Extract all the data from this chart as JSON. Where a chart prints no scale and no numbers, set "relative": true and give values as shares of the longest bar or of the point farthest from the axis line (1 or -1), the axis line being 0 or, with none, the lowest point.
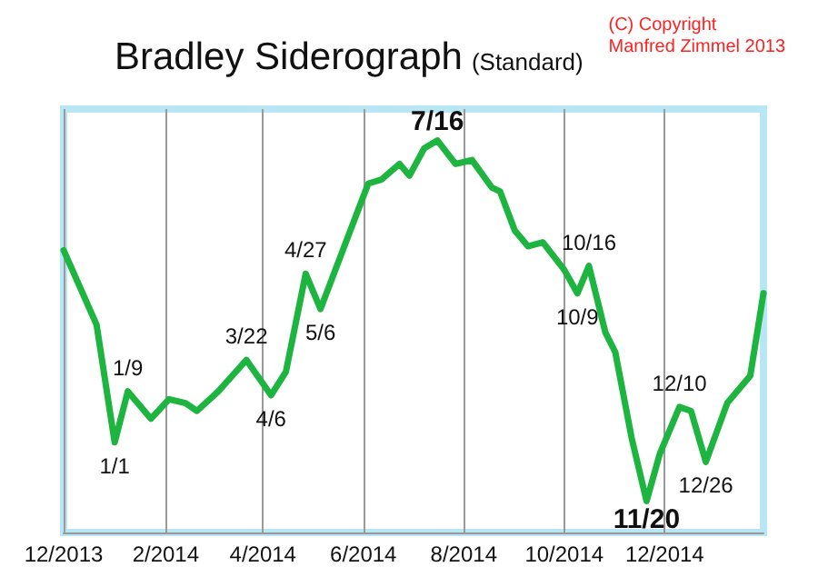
{
  "chart_data": {
    "type": "line",
    "title": "Bradley Siderograph",
    "subtitle": "(Standard)",
    "relative": true,
    "grid": "x",
    "marker": "none",
    "line_style": "solid",
    "xlim": [
      "2013-12-01",
      "2015-01-30"
    ],
    "xticks": [
      {
        "value": "2013-12-01",
        "label": "12/2013"
      },
      {
        "value": "2014-02-01",
        "label": "2/2014"
      },
      {
        "value": "2014-04-01",
        "label": "4/2014"
      },
      {
        "value": "2014-06-01",
        "label": "6/2014"
      },
      {
        "value": "2014-08-01",
        "label": "8/2014"
      },
      {
        "value": "2014-10-01",
        "label": "10/2014"
      },
      {
        "value": "2014-12-01",
        "label": "12/2014"
      }
    ],
    "x": [
      "2013-12-01",
      "2013-12-21",
      "2014-01-01",
      "2014-01-09",
      "2014-01-23",
      "2014-02-03",
      "2014-02-13",
      "2014-02-20",
      "2014-03-05",
      "2014-03-22",
      "2014-04-06",
      "2014-04-15",
      "2014-04-27",
      "2014-05-06",
      "2014-05-25",
      "2014-06-04",
      "2014-06-12",
      "2014-06-23",
      "2014-06-29",
      "2014-07-08",
      "2014-07-16",
      "2014-07-27",
      "2014-08-06",
      "2014-08-18",
      "2014-08-23",
      "2014-09-01",
      "2014-09-09",
      "2014-09-18",
      "2014-10-01",
      "2014-10-09",
      "2014-10-16",
      "2014-10-26",
      "2014-11-01",
      "2014-11-11",
      "2014-11-20",
      "2014-11-28",
      "2014-12-10",
      "2014-12-17",
      "2014-12-26",
      "2015-01-08",
      "2015-01-22",
      "2015-01-30"
    ],
    "series": [
      {
        "color": "#1db440",
        "values": [
          0.72,
          0.53,
          0.23,
          0.36,
          0.29,
          0.34,
          0.33,
          0.31,
          0.36,
          0.44,
          0.35,
          0.41,
          0.66,
          0.57,
          0.78,
          0.89,
          0.9,
          0.94,
          0.91,
          0.98,
          1,
          0.94,
          0.95,
          0.88,
          0.87,
          0.77,
          0.73,
          0.74,
          0.67,
          0.61,
          0.68,
          0.51,
          0.46,
          0.24,
          0.08,
          0.2,
          0.32,
          0.31,
          0.18,
          0.33,
          0.4,
          0.61
        ]
      }
    ],
    "annotations": [
      "(C) Copyright\nManfred Zimmel 2013",
      {
        "text": "1/1",
        "x": "2014-01-01",
        "y": 0.23
      },
      {
        "text": "1/9",
        "x": "2014-01-09",
        "y": 0.36
      },
      {
        "text": "3/22",
        "x": "2014-03-22",
        "y": 0.44
      },
      {
        "text": "4/6",
        "x": "2014-04-06",
        "y": 0.35
      },
      {
        "text": "4/27",
        "x": "2014-04-27",
        "y": 0.66
      },
      {
        "text": "5/6",
        "x": "2014-05-06",
        "y": 0.57
      },
      {
        "text": "7/16",
        "x": "2014-07-16",
        "y": 1
      },
      {
        "text": "10/9",
        "x": "2014-10-09",
        "y": 0.61
      },
      {
        "text": "10/16",
        "x": "2014-10-16",
        "y": 0.68
      },
      {
        "text": "11/20",
        "x": "2014-11-20",
        "y": 0.08
      },
      {
        "text": "12/10",
        "x": "2014-12-10",
        "y": 0.32
      },
      {
        "text": "12/26",
        "x": "2014-12-26",
        "y": 0.18
      }
    ]
  }
}
